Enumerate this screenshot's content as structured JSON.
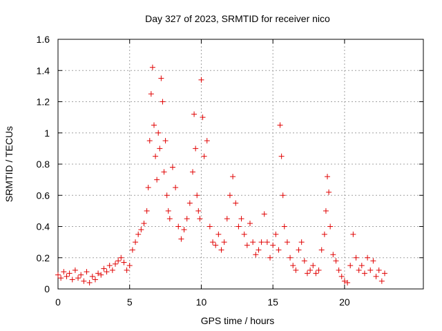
{
  "chart_data": {
    "type": "scatter",
    "title": "Day 327 of 2023, SRMTID for receiver nico",
    "xlabel": "GPS time / hours",
    "ylabel": "SRMTID / TECUs",
    "xlim": [
      0,
      25.5
    ],
    "ylim": [
      0,
      1.6
    ],
    "xticks": [
      0,
      5,
      10,
      15,
      20
    ],
    "xtick_labels": [
      "0",
      "5",
      "10",
      "15",
      "20"
    ],
    "yticks": [
      0,
      0.2,
      0.4,
      0.6,
      0.8,
      1.0,
      1.2,
      1.4,
      1.6
    ],
    "ytick_labels": [
      "0",
      "0.2",
      "0.4",
      "0.6",
      "0.8",
      "1",
      "1.2",
      "1.4",
      "1.6"
    ],
    "grid": true,
    "marker": "+",
    "color": "#e00000",
    "series": [
      {
        "name": "SRMTID",
        "points": [
          [
            0.0,
            0.09
          ],
          [
            0.2,
            0.07
          ],
          [
            0.4,
            0.11
          ],
          [
            0.6,
            0.08
          ],
          [
            0.8,
            0.1
          ],
          [
            1.0,
            0.06
          ],
          [
            1.2,
            0.12
          ],
          [
            1.4,
            0.07
          ],
          [
            1.6,
            0.09
          ],
          [
            1.8,
            0.05
          ],
          [
            2.0,
            0.11
          ],
          [
            2.2,
            0.04
          ],
          [
            2.4,
            0.08
          ],
          [
            2.6,
            0.06
          ],
          [
            2.8,
            0.1
          ],
          [
            3.0,
            0.09
          ],
          [
            3.2,
            0.13
          ],
          [
            3.4,
            0.11
          ],
          [
            3.6,
            0.15
          ],
          [
            3.8,
            0.12
          ],
          [
            4.0,
            0.16
          ],
          [
            4.2,
            0.18
          ],
          [
            4.4,
            0.2
          ],
          [
            4.6,
            0.17
          ],
          [
            4.8,
            0.12
          ],
          [
            5.0,
            0.15
          ],
          [
            5.2,
            0.25
          ],
          [
            5.4,
            0.3
          ],
          [
            5.6,
            0.35
          ],
          [
            5.8,
            0.38
          ],
          [
            6.0,
            0.42
          ],
          [
            6.2,
            0.5
          ],
          [
            6.3,
            0.65
          ],
          [
            6.4,
            0.95
          ],
          [
            6.5,
            1.25
          ],
          [
            6.6,
            1.42
          ],
          [
            6.7,
            1.05
          ],
          [
            6.8,
            0.85
          ],
          [
            6.9,
            0.7
          ],
          [
            7.0,
            1.0
          ],
          [
            7.1,
            0.9
          ],
          [
            7.2,
            1.35
          ],
          [
            7.3,
            1.2
          ],
          [
            7.4,
            0.75
          ],
          [
            7.5,
            0.95
          ],
          [
            7.6,
            0.6
          ],
          [
            7.7,
            0.5
          ],
          [
            7.8,
            0.45
          ],
          [
            8.0,
            0.78
          ],
          [
            8.2,
            0.65
          ],
          [
            8.4,
            0.4
          ],
          [
            8.6,
            0.32
          ],
          [
            8.8,
            0.38
          ],
          [
            9.0,
            0.45
          ],
          [
            9.2,
            0.55
          ],
          [
            9.4,
            0.75
          ],
          [
            9.5,
            1.12
          ],
          [
            9.6,
            0.9
          ],
          [
            9.7,
            0.6
          ],
          [
            9.8,
            0.5
          ],
          [
            9.9,
            0.45
          ],
          [
            10.0,
            1.34
          ],
          [
            10.1,
            1.1
          ],
          [
            10.2,
            0.85
          ],
          [
            10.4,
            0.95
          ],
          [
            10.6,
            0.4
          ],
          [
            10.8,
            0.3
          ],
          [
            11.0,
            0.28
          ],
          [
            11.2,
            0.35
          ],
          [
            11.4,
            0.25
          ],
          [
            11.6,
            0.3
          ],
          [
            11.8,
            0.45
          ],
          [
            12.0,
            0.6
          ],
          [
            12.2,
            0.72
          ],
          [
            12.4,
            0.55
          ],
          [
            12.6,
            0.4
          ],
          [
            12.8,
            0.45
          ],
          [
            13.0,
            0.35
          ],
          [
            13.2,
            0.28
          ],
          [
            13.4,
            0.42
          ],
          [
            13.6,
            0.3
          ],
          [
            13.8,
            0.22
          ],
          [
            14.0,
            0.25
          ],
          [
            14.2,
            0.3
          ],
          [
            14.4,
            0.48
          ],
          [
            14.6,
            0.3
          ],
          [
            14.8,
            0.2
          ],
          [
            15.0,
            0.28
          ],
          [
            15.2,
            0.35
          ],
          [
            15.4,
            0.25
          ],
          [
            15.5,
            1.05
          ],
          [
            15.6,
            0.85
          ],
          [
            15.7,
            0.6
          ],
          [
            15.8,
            0.4
          ],
          [
            16.0,
            0.3
          ],
          [
            16.2,
            0.2
          ],
          [
            16.4,
            0.15
          ],
          [
            16.6,
            0.12
          ],
          [
            16.8,
            0.25
          ],
          [
            17.0,
            0.3
          ],
          [
            17.2,
            0.18
          ],
          [
            17.4,
            0.1
          ],
          [
            17.6,
            0.12
          ],
          [
            17.8,
            0.15
          ],
          [
            18.0,
            0.1
          ],
          [
            18.2,
            0.12
          ],
          [
            18.4,
            0.25
          ],
          [
            18.6,
            0.35
          ],
          [
            18.7,
            0.5
          ],
          [
            18.8,
            0.72
          ],
          [
            18.9,
            0.62
          ],
          [
            19.0,
            0.4
          ],
          [
            19.2,
            0.22
          ],
          [
            19.4,
            0.18
          ],
          [
            19.6,
            0.12
          ],
          [
            19.8,
            0.08
          ],
          [
            20.0,
            0.05
          ],
          [
            20.2,
            0.04
          ],
          [
            20.4,
            0.15
          ],
          [
            20.6,
            0.35
          ],
          [
            20.8,
            0.2
          ],
          [
            21.0,
            0.12
          ],
          [
            21.2,
            0.15
          ],
          [
            21.4,
            0.1
          ],
          [
            21.6,
            0.2
          ],
          [
            21.8,
            0.12
          ],
          [
            22.0,
            0.18
          ],
          [
            22.2,
            0.08
          ],
          [
            22.4,
            0.12
          ],
          [
            22.6,
            0.05
          ],
          [
            22.8,
            0.1
          ]
        ]
      }
    ]
  }
}
